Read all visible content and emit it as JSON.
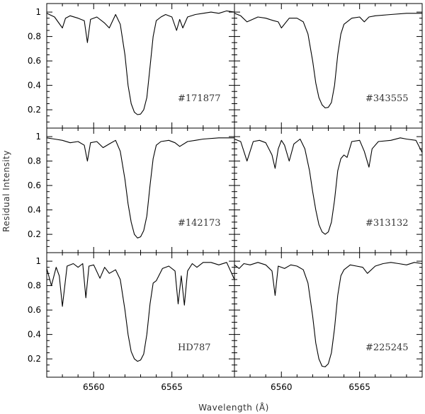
{
  "chart_data": {
    "type": "line",
    "xlabel": "Wavelength (Å)",
    "ylabel": "Residual Intensity",
    "xlim": [
      6557,
      6569
    ],
    "ylim": [
      0.05,
      1.07
    ],
    "x_ticks": [
      6560,
      6565
    ],
    "x_tick_labels": [
      "6560",
      "6565"
    ],
    "y_ticks": [
      0.2,
      0.4,
      0.6,
      0.8,
      1
    ],
    "y_tick_labels": [
      "0.2",
      "0.4",
      "0.6",
      "0.8",
      "1"
    ],
    "layout": "3 rows x 2 columns, shared axes",
    "panels": [
      {
        "label": "#171877",
        "x": [
          6557.0,
          6557.5,
          6558.0,
          6558.2,
          6558.5,
          6559.0,
          6559.4,
          6559.6,
          6559.8,
          6560.2,
          6560.7,
          6561.0,
          6561.4,
          6561.7,
          6562.0,
          6562.2,
          6562.4,
          6562.6,
          6562.8,
          6563.0,
          6563.2,
          6563.4,
          6563.6,
          6563.8,
          6564.0,
          6564.3,
          6564.6,
          6565.0,
          6565.3,
          6565.5,
          6565.7,
          6566.0,
          6566.5,
          6567.0,
          6567.5,
          6568.0,
          6568.5,
          6569.0
        ],
        "y": [
          0.99,
          0.96,
          0.87,
          0.95,
          0.97,
          0.95,
          0.93,
          0.75,
          0.94,
          0.96,
          0.91,
          0.87,
          0.98,
          0.9,
          0.65,
          0.4,
          0.25,
          0.18,
          0.16,
          0.165,
          0.2,
          0.3,
          0.55,
          0.8,
          0.93,
          0.96,
          0.98,
          0.96,
          0.85,
          0.94,
          0.87,
          0.96,
          0.98,
          0.99,
          1.0,
          0.99,
          1.01,
          1.0
        ]
      },
      {
        "label": "#343555",
        "x": [
          6557.0,
          6557.4,
          6557.8,
          6558.5,
          6559.0,
          6559.5,
          6559.8,
          6560.0,
          6560.5,
          6561.0,
          6561.4,
          6561.7,
          6562.0,
          6562.2,
          6562.4,
          6562.6,
          6562.8,
          6563.0,
          6563.2,
          6563.4,
          6563.6,
          6563.8,
          6564.0,
          6564.5,
          6565.0,
          6565.3,
          6565.6,
          6566.0,
          6567.0,
          6568.0,
          6569.0
        ],
        "y": [
          0.99,
          0.97,
          0.92,
          0.96,
          0.95,
          0.93,
          0.92,
          0.87,
          0.95,
          0.95,
          0.92,
          0.82,
          0.6,
          0.42,
          0.3,
          0.24,
          0.215,
          0.22,
          0.26,
          0.4,
          0.65,
          0.82,
          0.9,
          0.95,
          0.96,
          0.92,
          0.96,
          0.97,
          0.98,
          0.99,
          0.99
        ]
      },
      {
        "label": "#142173",
        "x": [
          6557.0,
          6557.5,
          6558.0,
          6558.5,
          6559.0,
          6559.4,
          6559.6,
          6559.8,
          6560.2,
          6560.6,
          6561.0,
          6561.4,
          6561.7,
          6562.0,
          6562.2,
          6562.4,
          6562.6,
          6562.8,
          6563.0,
          6563.2,
          6563.4,
          6563.6,
          6563.8,
          6564.0,
          6564.3,
          6564.8,
          6565.2,
          6565.5,
          6566.0,
          6566.5,
          6567.0,
          6568.0,
          6569.0
        ],
        "y": [
          0.99,
          0.98,
          0.97,
          0.95,
          0.96,
          0.93,
          0.8,
          0.95,
          0.96,
          0.91,
          0.94,
          0.97,
          0.88,
          0.65,
          0.45,
          0.3,
          0.2,
          0.17,
          0.18,
          0.23,
          0.35,
          0.6,
          0.82,
          0.93,
          0.96,
          0.97,
          0.95,
          0.92,
          0.96,
          0.97,
          0.98,
          0.99,
          0.99
        ]
      },
      {
        "label": "#313132",
        "x": [
          6557.0,
          6557.4,
          6557.8,
          6558.2,
          6558.6,
          6559.0,
          6559.4,
          6559.6,
          6559.8,
          6560.0,
          6560.2,
          6560.5,
          6560.8,
          6561.2,
          6561.5,
          6561.8,
          6562.0,
          6562.2,
          6562.4,
          6562.6,
          6562.8,
          6563.0,
          6563.2,
          6563.4,
          6563.6,
          6563.8,
          6564.0,
          6564.2,
          6564.5,
          6565.0,
          6565.3,
          6565.6,
          6565.8,
          6566.2,
          6567.0,
          6567.6,
          6568.0,
          6568.6,
          6569.0
        ],
        "y": [
          0.98,
          0.96,
          0.8,
          0.96,
          0.97,
          0.95,
          0.85,
          0.74,
          0.9,
          0.97,
          0.93,
          0.8,
          0.94,
          0.98,
          0.9,
          0.72,
          0.55,
          0.4,
          0.28,
          0.22,
          0.2,
          0.22,
          0.3,
          0.48,
          0.72,
          0.82,
          0.85,
          0.83,
          0.96,
          0.97,
          0.88,
          0.75,
          0.9,
          0.96,
          0.97,
          0.99,
          0.98,
          0.97,
          0.87
        ]
      },
      {
        "label": "HD787",
        "x": [
          6557.0,
          6557.3,
          6557.6,
          6557.8,
          6558.0,
          6558.3,
          6558.7,
          6559.0,
          6559.3,
          6559.5,
          6559.7,
          6560.0,
          6560.4,
          6560.7,
          6561.0,
          6561.4,
          6561.7,
          6562.0,
          6562.2,
          6562.4,
          6562.6,
          6562.8,
          6563.0,
          6563.2,
          6563.4,
          6563.6,
          6563.8,
          6564.0,
          6564.4,
          6564.8,
          6565.2,
          6565.4,
          6565.6,
          6565.8,
          6566.0,
          6566.3,
          6566.6,
          6567.0,
          6567.5,
          6568.0,
          6568.5,
          6569.0
        ],
        "y": [
          0.94,
          0.8,
          0.95,
          0.88,
          0.63,
          0.96,
          0.98,
          0.95,
          0.98,
          0.7,
          0.96,
          0.97,
          0.86,
          0.95,
          0.9,
          0.93,
          0.85,
          0.6,
          0.4,
          0.26,
          0.2,
          0.18,
          0.19,
          0.24,
          0.4,
          0.65,
          0.82,
          0.84,
          0.94,
          0.96,
          0.92,
          0.65,
          0.88,
          0.64,
          0.92,
          0.98,
          0.95,
          0.99,
          0.99,
          0.97,
          0.99,
          0.85
        ]
      },
      {
        "label": "#225245",
        "x": [
          6557.0,
          6557.3,
          6557.6,
          6558.0,
          6558.5,
          6559.0,
          6559.4,
          6559.6,
          6559.8,
          6560.2,
          6560.6,
          6561.0,
          6561.4,
          6561.7,
          6562.0,
          6562.2,
          6562.4,
          6562.6,
          6562.8,
          6563.0,
          6563.2,
          6563.4,
          6563.6,
          6563.8,
          6564.0,
          6564.4,
          6564.8,
          6565.2,
          6565.5,
          6566.0,
          6566.5,
          6567.0,
          6567.5,
          6568.0,
          6568.5,
          6569.0
        ],
        "y": [
          0.97,
          0.94,
          0.98,
          0.97,
          0.99,
          0.97,
          0.92,
          0.72,
          0.96,
          0.94,
          0.97,
          0.96,
          0.93,
          0.82,
          0.55,
          0.33,
          0.2,
          0.14,
          0.135,
          0.16,
          0.25,
          0.45,
          0.72,
          0.88,
          0.93,
          0.97,
          0.96,
          0.95,
          0.9,
          0.96,
          0.98,
          0.99,
          0.98,
          0.97,
          0.99,
          0.98
        ]
      }
    ]
  }
}
